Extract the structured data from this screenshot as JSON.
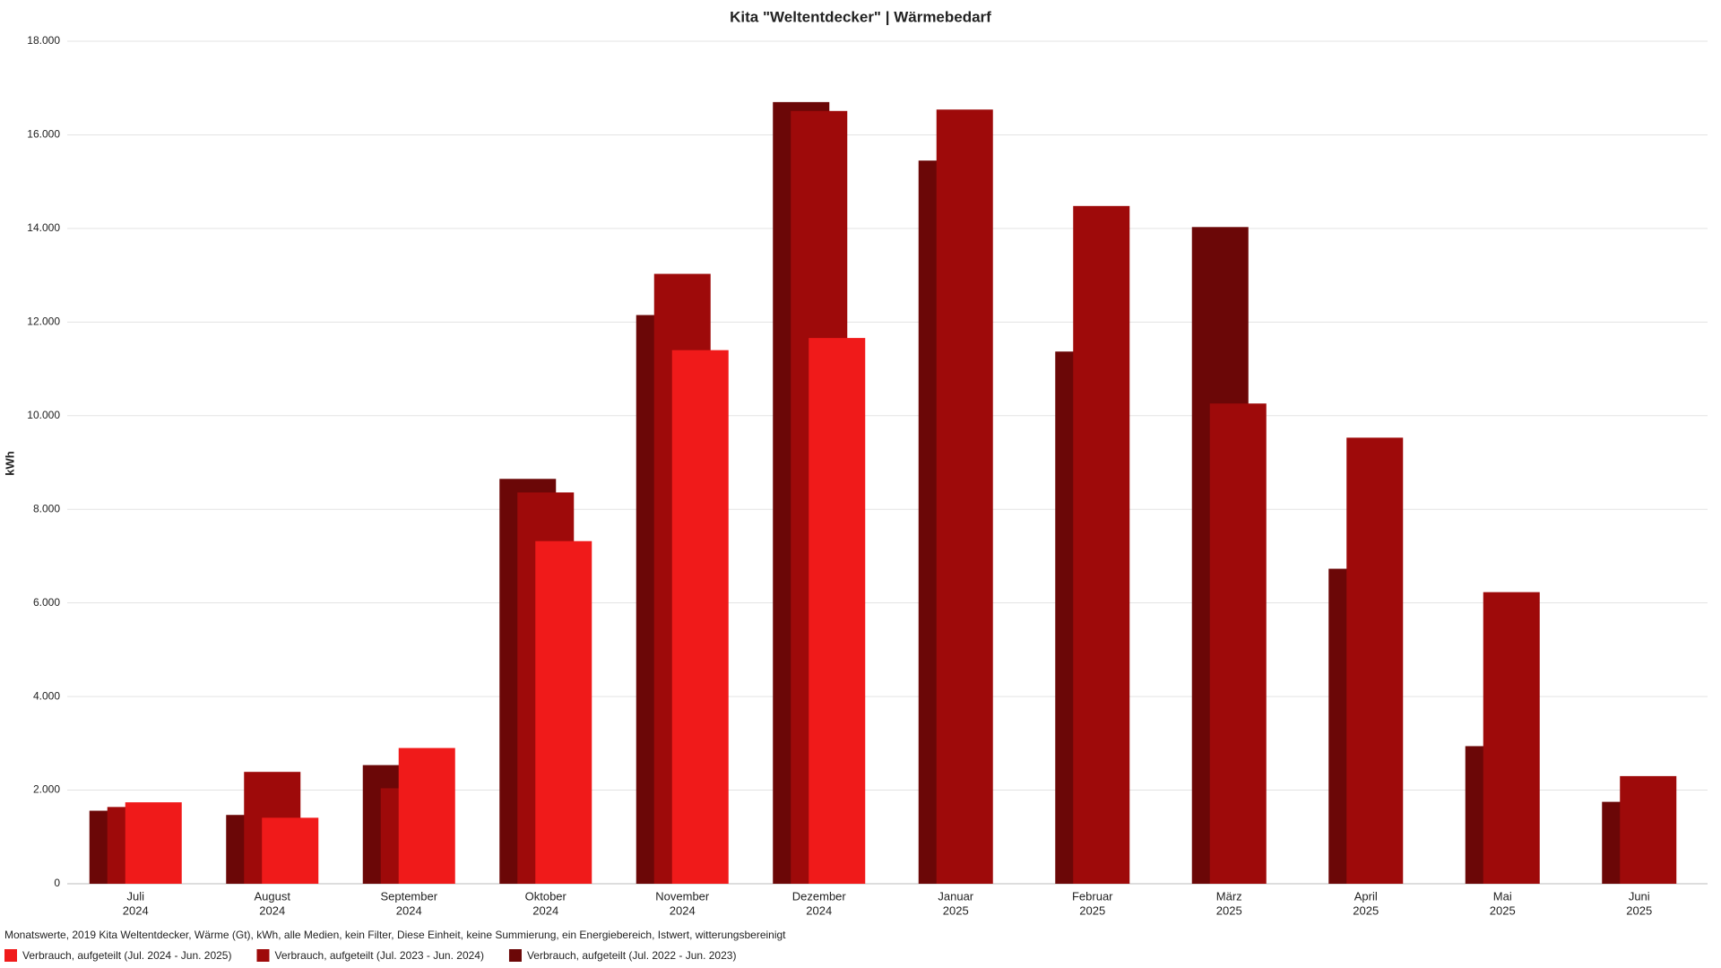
{
  "chart_data": {
    "type": "bar",
    "title": "Kita \"Weltentdecker\" | Wärmebedarf",
    "y_label": "kWh",
    "footnote": "Monatswerte, 2019 Kita Weltentdecker, Wärme (Gt), kWh, alle Medien, kein Filter, Diese Einheit, keine Summierung, ein Energiebereich, Istwert, witterungsbereinigt",
    "categories": [
      [
        "Juli",
        "2024"
      ],
      [
        "August",
        "2024"
      ],
      [
        "September",
        "2024"
      ],
      [
        "Oktober",
        "2024"
      ],
      [
        "November",
        "2024"
      ],
      [
        "Dezember",
        "2024"
      ],
      [
        "Januar",
        "2025"
      ],
      [
        "Februar",
        "2025"
      ],
      [
        "März",
        "2025"
      ],
      [
        "April",
        "2025"
      ],
      [
        "Mai",
        "2025"
      ],
      [
        "Juni",
        "2025"
      ]
    ],
    "series": [
      {
        "name": "Verbrauch, aufgeteilt (Jul. 2024 - Jun. 2025)",
        "color": "#f01a1a",
        "values": [
          1740,
          1410,
          2900,
          7320,
          11400,
          11660,
          null,
          null,
          null,
          null,
          null,
          null
        ]
      },
      {
        "name": "Verbrauch, aufgeteilt (Jul. 2023 - Jun. 2024)",
        "color": "#9e0a0a",
        "values": [
          1640,
          2390,
          2040,
          8360,
          13030,
          16510,
          16540,
          14480,
          10260,
          9530,
          6230,
          2300
        ]
      },
      {
        "name": "Verbrauch, aufgeteilt (Jul. 2022 - Jun. 2023)",
        "color": "#6b0707",
        "values": [
          1560,
          1470,
          2535,
          8650,
          12150,
          16700,
          15450,
          11370,
          14030,
          6730,
          2940,
          1750
        ]
      }
    ],
    "ylim": [
      0,
      18000
    ],
    "yticks": [
      0,
      {
        "value": 2000,
        "label": "2.000"
      },
      {
        "value": 4000,
        "label": "4.000"
      },
      {
        "value": 6000,
        "label": "6.000"
      },
      {
        "value": 8000,
        "label": "8.000"
      },
      {
        "value": 10000,
        "label": "10.000"
      },
      {
        "value": 12000,
        "label": "12.000"
      },
      {
        "value": 14000,
        "label": "14.000"
      },
      {
        "value": 16000,
        "label": "16.000"
      },
      {
        "value": 18000,
        "label": "18.000"
      }
    ],
    "grid": true
  }
}
